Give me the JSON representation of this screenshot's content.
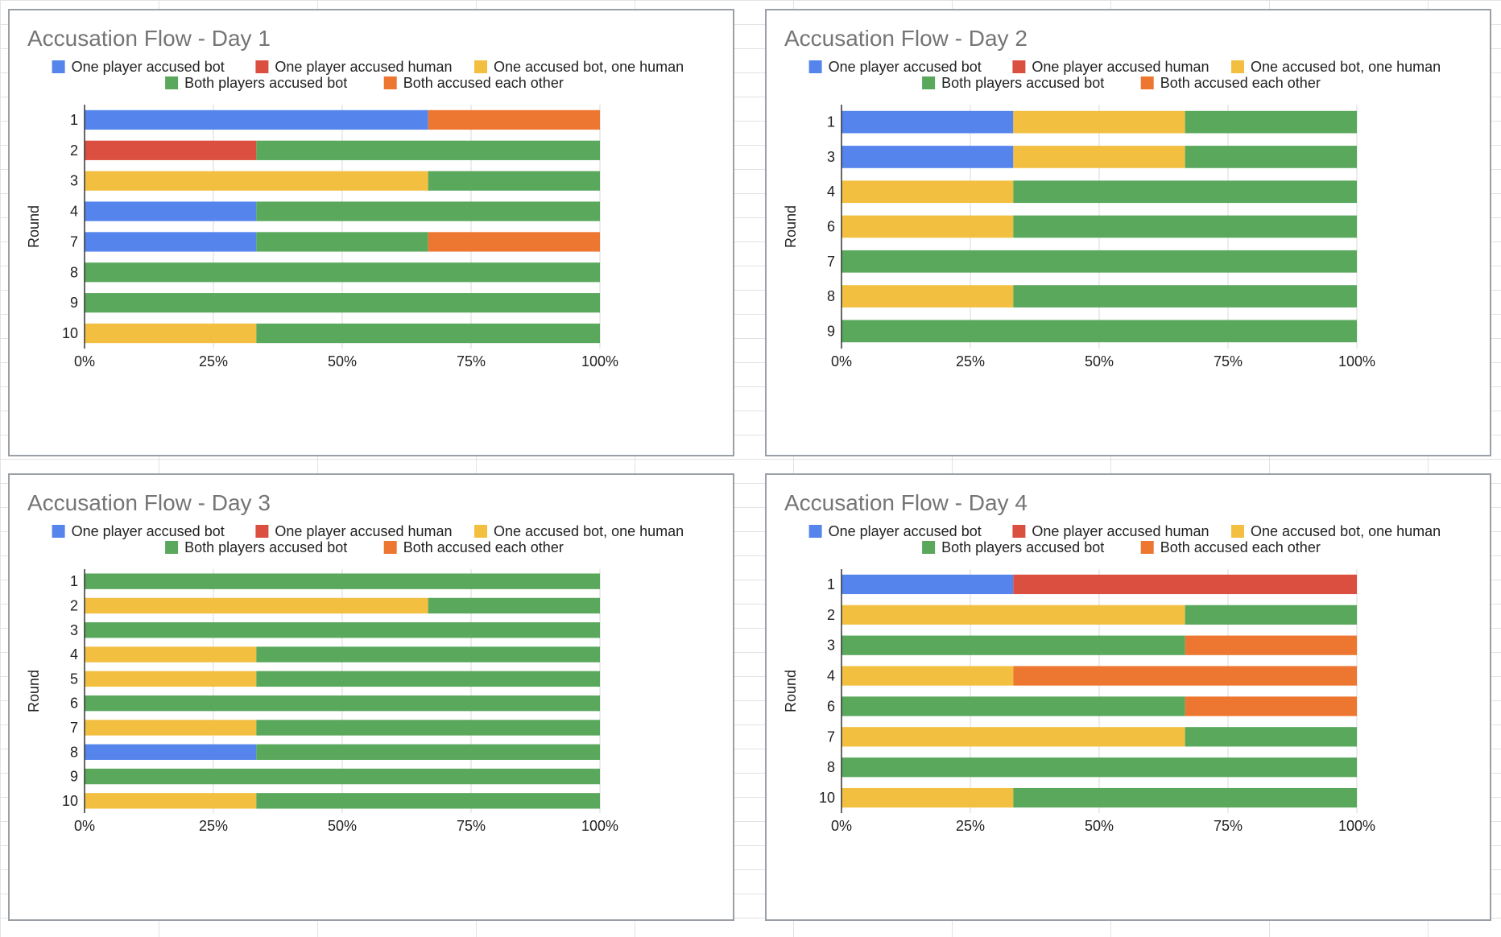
{
  "chart_data": [
    {
      "type": "bar",
      "stacked": "percent",
      "orientation": "horizontal",
      "title": "Accusation Flow - Day 1",
      "ylabel": "Round",
      "categories": [
        "1",
        "2",
        "3",
        "4",
        "7",
        "8",
        "9",
        "10"
      ],
      "xlim": [
        0,
        100
      ],
      "x_ticks": [
        "0%",
        "25%",
        "50%",
        "75%",
        "100%"
      ],
      "legend_position": "top",
      "series": [
        {
          "name": "One player accused bot",
          "color": "#5585ec",
          "values": [
            2,
            0,
            0,
            1,
            1,
            0,
            0,
            0
          ]
        },
        {
          "name": "One player accused human",
          "color": "#db4f41",
          "values": [
            0,
            1,
            0,
            0,
            0,
            0,
            0,
            0
          ]
        },
        {
          "name": "One accused bot, one human",
          "color": "#f2bf41",
          "values": [
            0,
            0,
            2,
            0,
            0,
            0,
            0,
            1
          ]
        },
        {
          "name": "Both players accused bot",
          "color": "#59a85c",
          "values": [
            0,
            2,
            1,
            2,
            1,
            3,
            3,
            2
          ]
        },
        {
          "name": "Both accused each other",
          "color": "#ed7630",
          "values": [
            1,
            0,
            0,
            0,
            1,
            0,
            0,
            0
          ]
        }
      ]
    },
    {
      "type": "bar",
      "stacked": "percent",
      "orientation": "horizontal",
      "title": "Accusation Flow - Day 2",
      "ylabel": "Round",
      "categories": [
        "1",
        "3",
        "4",
        "6",
        "7",
        "8",
        "9"
      ],
      "xlim": [
        0,
        100
      ],
      "x_ticks": [
        "0%",
        "25%",
        "50%",
        "75%",
        "100%"
      ],
      "legend_position": "top",
      "series": [
        {
          "name": "One player accused bot",
          "color": "#5585ec",
          "values": [
            1,
            1,
            0,
            0,
            0,
            0,
            0
          ]
        },
        {
          "name": "One player accused human",
          "color": "#db4f41",
          "values": [
            0,
            0,
            0,
            0,
            0,
            0,
            0
          ]
        },
        {
          "name": "One accused bot, one human",
          "color": "#f2bf41",
          "values": [
            1,
            1,
            1,
            1,
            0,
            1,
            0
          ]
        },
        {
          "name": "Both players accused bot",
          "color": "#59a85c",
          "values": [
            1,
            1,
            2,
            2,
            3,
            2,
            3
          ]
        },
        {
          "name": "Both accused each other",
          "color": "#ed7630",
          "values": [
            0,
            0,
            0,
            0,
            0,
            0,
            0
          ]
        }
      ]
    },
    {
      "type": "bar",
      "stacked": "percent",
      "orientation": "horizontal",
      "title": "Accusation Flow - Day 3",
      "ylabel": "Round",
      "categories": [
        "1",
        "2",
        "3",
        "4",
        "5",
        "6",
        "7",
        "8",
        "9",
        "10"
      ],
      "xlim": [
        0,
        100
      ],
      "x_ticks": [
        "0%",
        "25%",
        "50%",
        "75%",
        "100%"
      ],
      "legend_position": "top",
      "series": [
        {
          "name": "One player accused bot",
          "color": "#5585ec",
          "values": [
            0,
            0,
            0,
            0,
            0,
            0,
            0,
            1,
            0,
            0
          ]
        },
        {
          "name": "One player accused human",
          "color": "#db4f41",
          "values": [
            0,
            0,
            0,
            0,
            0,
            0,
            0,
            0,
            0,
            0
          ]
        },
        {
          "name": "One accused bot, one human",
          "color": "#f2bf41",
          "values": [
            0,
            2,
            0,
            1,
            1,
            0,
            1,
            0,
            0,
            1
          ]
        },
        {
          "name": "Both players accused bot",
          "color": "#59a85c",
          "values": [
            3,
            1,
            3,
            2,
            2,
            3,
            2,
            2,
            3,
            2
          ]
        },
        {
          "name": "Both accused each other",
          "color": "#ed7630",
          "values": [
            0,
            0,
            0,
            0,
            0,
            0,
            0,
            0,
            0,
            0
          ]
        }
      ]
    },
    {
      "type": "bar",
      "stacked": "percent",
      "orientation": "horizontal",
      "title": "Accusation Flow - Day 4",
      "ylabel": "Round",
      "categories": [
        "1",
        "2",
        "3",
        "4",
        "6",
        "7",
        "8",
        "10"
      ],
      "xlim": [
        0,
        100
      ],
      "x_ticks": [
        "0%",
        "25%",
        "50%",
        "75%",
        "100%"
      ],
      "legend_position": "top",
      "series": [
        {
          "name": "One player accused bot",
          "color": "#5585ec",
          "values": [
            1,
            0,
            0,
            0,
            0,
            0,
            0,
            0
          ]
        },
        {
          "name": "One player accused human",
          "color": "#db4f41",
          "values": [
            2,
            0,
            0,
            0,
            0,
            0,
            0,
            0
          ]
        },
        {
          "name": "One accused bot, one human",
          "color": "#f2bf41",
          "values": [
            0,
            2,
            0,
            1,
            0,
            2,
            0,
            1
          ]
        },
        {
          "name": "Both players accused bot",
          "color": "#59a85c",
          "values": [
            0,
            1,
            2,
            0,
            2,
            1,
            3,
            2
          ]
        },
        {
          "name": "Both accused each other",
          "color": "#ed7630",
          "values": [
            0,
            0,
            1,
            2,
            1,
            0,
            0,
            0
          ]
        }
      ]
    }
  ]
}
